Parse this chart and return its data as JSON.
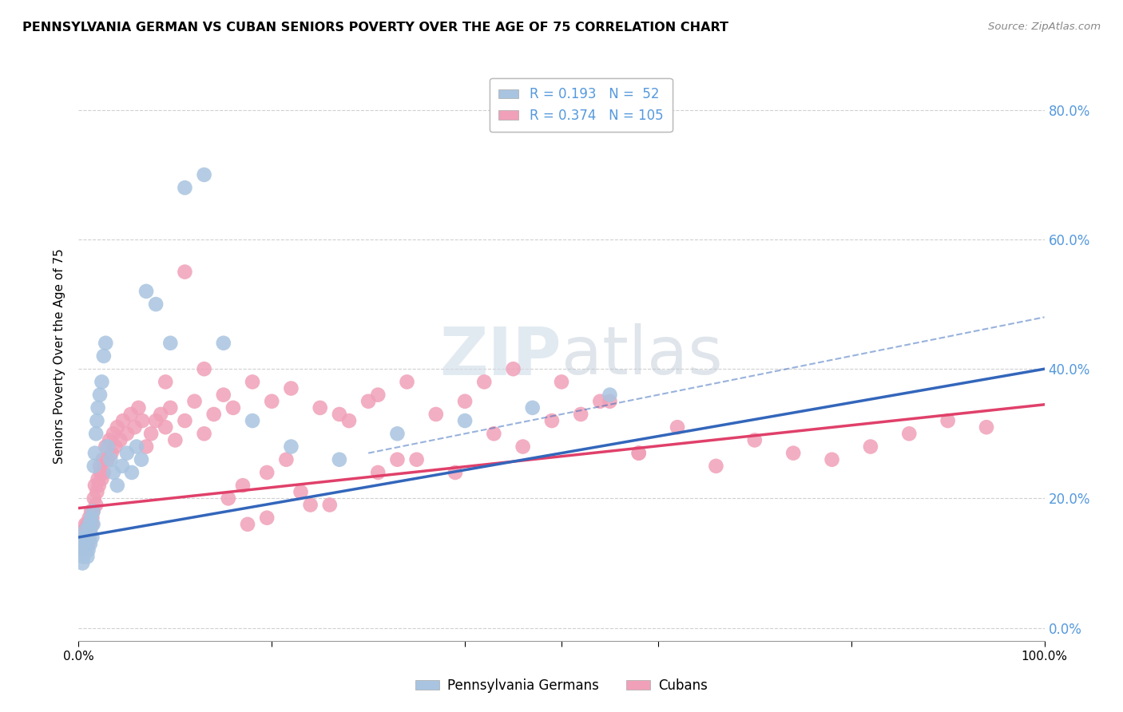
{
  "title": "PENNSYLVANIA GERMAN VS CUBAN SENIORS POVERTY OVER THE AGE OF 75 CORRELATION CHART",
  "source": "Source: ZipAtlas.com",
  "ylabel": "Seniors Poverty Over the Age of 75",
  "watermark_zip": "ZIP",
  "watermark_atlas": "atlas",
  "legend1_label": "Pennsylvania Germans",
  "legend2_label": "Cubans",
  "legend1_R": "0.193",
  "legend1_N": "52",
  "legend2_R": "0.374",
  "legend2_N": "105",
  "pa_color": "#A8C4E0",
  "cuba_color": "#F0A0B8",
  "pa_line_color": "#3366BB",
  "cuba_line_color": "#E0406A",
  "background_color": "#ffffff",
  "grid_color": "#d0d0d0",
  "right_axis_color": "#5599DD",
  "xlim": [
    0.0,
    1.0
  ],
  "ylim": [
    -0.02,
    0.86
  ],
  "right_yticks": [
    0.0,
    0.2,
    0.4,
    0.6,
    0.8
  ],
  "right_yticklabels": [
    "0.0%",
    "20.0%",
    "40.0%",
    "60.0%",
    "80.0%"
  ],
  "pa_trend_x0": 0.0,
  "pa_trend_x1": 1.0,
  "pa_trend_y0": 0.14,
  "pa_trend_y1": 0.4,
  "cuba_trend_x0": 0.0,
  "cuba_trend_x1": 1.0,
  "cuba_trend_y0": 0.185,
  "cuba_trend_y1": 0.345,
  "pa_x": [
    0.003,
    0.004,
    0.005,
    0.005,
    0.006,
    0.006,
    0.007,
    0.007,
    0.008,
    0.008,
    0.009,
    0.009,
    0.01,
    0.01,
    0.011,
    0.012,
    0.012,
    0.013,
    0.014,
    0.015,
    0.015,
    0.016,
    0.017,
    0.018,
    0.019,
    0.02,
    0.022,
    0.024,
    0.026,
    0.028,
    0.03,
    0.033,
    0.036,
    0.04,
    0.045,
    0.05,
    0.055,
    0.06,
    0.065,
    0.07,
    0.08,
    0.095,
    0.11,
    0.13,
    0.15,
    0.18,
    0.22,
    0.27,
    0.33,
    0.4,
    0.47,
    0.55
  ],
  "pa_y": [
    0.12,
    0.1,
    0.13,
    0.11,
    0.12,
    0.14,
    0.13,
    0.15,
    0.12,
    0.14,
    0.13,
    0.11,
    0.14,
    0.12,
    0.16,
    0.15,
    0.13,
    0.17,
    0.14,
    0.18,
    0.16,
    0.25,
    0.27,
    0.3,
    0.32,
    0.34,
    0.36,
    0.38,
    0.42,
    0.44,
    0.28,
    0.26,
    0.24,
    0.22,
    0.25,
    0.27,
    0.24,
    0.28,
    0.26,
    0.52,
    0.5,
    0.44,
    0.68,
    0.7,
    0.44,
    0.32,
    0.28,
    0.26,
    0.3,
    0.32,
    0.34,
    0.36
  ],
  "cuba_x": [
    0.003,
    0.004,
    0.005,
    0.006,
    0.006,
    0.007,
    0.007,
    0.008,
    0.008,
    0.009,
    0.01,
    0.01,
    0.011,
    0.011,
    0.012,
    0.012,
    0.013,
    0.014,
    0.014,
    0.015,
    0.016,
    0.017,
    0.018,
    0.019,
    0.02,
    0.021,
    0.022,
    0.023,
    0.024,
    0.025,
    0.026,
    0.028,
    0.03,
    0.032,
    0.034,
    0.036,
    0.038,
    0.04,
    0.043,
    0.046,
    0.05,
    0.054,
    0.058,
    0.062,
    0.066,
    0.07,
    0.075,
    0.08,
    0.085,
    0.09,
    0.095,
    0.1,
    0.11,
    0.12,
    0.13,
    0.14,
    0.15,
    0.16,
    0.18,
    0.2,
    0.22,
    0.25,
    0.28,
    0.31,
    0.34,
    0.37,
    0.4,
    0.43,
    0.46,
    0.49,
    0.52,
    0.55,
    0.58,
    0.62,
    0.66,
    0.7,
    0.74,
    0.78,
    0.82,
    0.86,
    0.9,
    0.94,
    0.11,
    0.09,
    0.13,
    0.5,
    0.54,
    0.58,
    0.35,
    0.39,
    0.27,
    0.3,
    0.23,
    0.26,
    0.42,
    0.45,
    0.195,
    0.215,
    0.17,
    0.155,
    0.175,
    0.195,
    0.31,
    0.33,
    0.24
  ],
  "cuba_y": [
    0.13,
    0.12,
    0.15,
    0.14,
    0.13,
    0.16,
    0.14,
    0.15,
    0.13,
    0.16,
    0.15,
    0.13,
    0.17,
    0.14,
    0.16,
    0.15,
    0.18,
    0.16,
    0.17,
    0.18,
    0.2,
    0.22,
    0.19,
    0.21,
    0.23,
    0.22,
    0.25,
    0.24,
    0.23,
    0.26,
    0.24,
    0.28,
    0.26,
    0.29,
    0.27,
    0.3,
    0.28,
    0.31,
    0.29,
    0.32,
    0.3,
    0.33,
    0.31,
    0.34,
    0.32,
    0.28,
    0.3,
    0.32,
    0.33,
    0.31,
    0.34,
    0.29,
    0.32,
    0.35,
    0.3,
    0.33,
    0.36,
    0.34,
    0.38,
    0.35,
    0.37,
    0.34,
    0.32,
    0.36,
    0.38,
    0.33,
    0.35,
    0.3,
    0.28,
    0.32,
    0.33,
    0.35,
    0.27,
    0.31,
    0.25,
    0.29,
    0.27,
    0.26,
    0.28,
    0.3,
    0.32,
    0.31,
    0.55,
    0.38,
    0.4,
    0.38,
    0.35,
    0.27,
    0.26,
    0.24,
    0.33,
    0.35,
    0.21,
    0.19,
    0.38,
    0.4,
    0.24,
    0.26,
    0.22,
    0.2,
    0.16,
    0.17,
    0.24,
    0.26,
    0.19
  ]
}
